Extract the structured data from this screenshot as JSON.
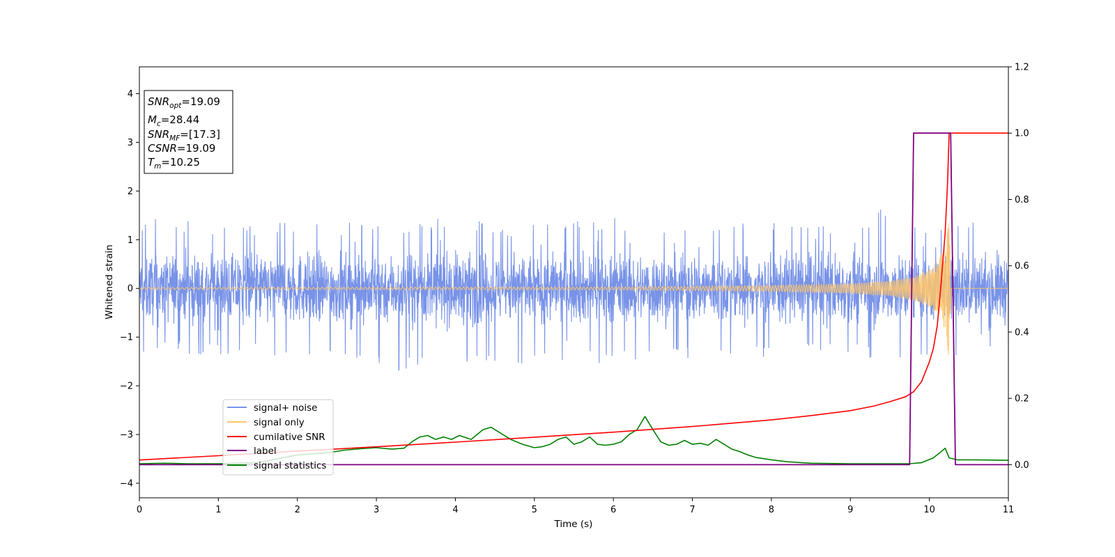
{
  "chart_data": {
    "type": "line",
    "xlabel": "Time (s)",
    "ylabel": "Whitened strain",
    "xlim": [
      0,
      11
    ],
    "ylim_left": [
      -4.3,
      4.55
    ],
    "ylim_right": [
      -0.1,
      1.2
    ],
    "x_ticks": [
      "0",
      "1",
      "2",
      "3",
      "4",
      "5",
      "6",
      "7",
      "8",
      "9",
      "10",
      "11"
    ],
    "y_ticks_left": [
      "−4",
      "−3",
      "−2",
      "−1",
      "0",
      "1",
      "2",
      "3",
      "4"
    ],
    "y_ticks_right": [
      "0.0",
      "0.2",
      "0.4",
      "0.6",
      "0.8",
      "1.0",
      "1.2"
    ],
    "grid": false,
    "legend_position": "lower-left",
    "annotation": {
      "snr_opt": {
        "main": "SNR",
        "sub": "opt",
        "value": "=19.09"
      },
      "mc": {
        "main": "M",
        "sub": "c",
        "value": "=28.44"
      },
      "snr_mf": {
        "main": "SNR",
        "sub": "MF",
        "value": "=[17.3]"
      },
      "csnr": {
        "main": "CSNR",
        "value": "=19.09"
      },
      "tm": {
        "main": "T",
        "sub": "m",
        "value": "=10.25"
      }
    },
    "series": [
      {
        "name": "signal+ noise",
        "axis": "left",
        "color": "#7893e8",
        "envelope": {
          "x": [
            0,
            1,
            2,
            3,
            4,
            4.5,
            5,
            6,
            7,
            8,
            9,
            9.6,
            9.9,
            10.1,
            10.25,
            10.4,
            11
          ],
          "upper": [
            1.45,
            1.35,
            1.35,
            1.35,
            1.5,
            1.3,
            1.4,
            1.45,
            1.4,
            1.35,
            1.4,
            1.75,
            1.4,
            1.45,
            1.3,
            1.4,
            1.4
          ],
          "lower": [
            -1.4,
            -1.35,
            -1.4,
            -1.7,
            -1.65,
            -1.7,
            -1.6,
            -1.55,
            -1.5,
            -1.45,
            -1.4,
            -1.5,
            -1.45,
            -1.4,
            -1.55,
            -1.45,
            -1.25
          ]
        }
      },
      {
        "name": "signal only",
        "axis": "left",
        "color": "#ffc66b",
        "envelope": {
          "x": [
            0,
            6,
            8,
            9,
            9.5,
            9.8,
            10,
            10.1,
            10.2,
            10.25,
            10.28
          ],
          "amplitude": [
            0.02,
            0.03,
            0.06,
            0.1,
            0.16,
            0.25,
            0.4,
            0.55,
            0.85,
            1.45,
            0.0
          ]
        }
      },
      {
        "name": "cumilative SNR",
        "axis": "right",
        "color": "#ff0000",
        "x": [
          0,
          1,
          2,
          3,
          4,
          5,
          6,
          7,
          8,
          8.5,
          9,
          9.3,
          9.5,
          9.7,
          9.8,
          9.9,
          10.0,
          10.05,
          10.1,
          10.15,
          10.2,
          10.23,
          10.25,
          11
        ],
        "y": [
          0.014,
          0.027,
          0.041,
          0.054,
          0.068,
          0.083,
          0.098,
          0.115,
          0.135,
          0.148,
          0.163,
          0.177,
          0.19,
          0.205,
          0.22,
          0.25,
          0.31,
          0.35,
          0.42,
          0.55,
          0.7,
          0.85,
          1.0,
          1.0
        ]
      },
      {
        "name": "label",
        "axis": "right",
        "color": "#800080",
        "x": [
          0,
          9.75,
          9.8,
          10.27,
          10.33,
          11
        ],
        "y": [
          0.0,
          0.0,
          1.0,
          1.0,
          0.0,
          0.0
        ]
      },
      {
        "name": "signal statistics",
        "axis": "left",
        "color": "#008000",
        "x": [
          0,
          0.3,
          0.6,
          1.0,
          1.5,
          2.0,
          2.4,
          2.6,
          2.8,
          3.0,
          3.2,
          3.35,
          3.45,
          3.55,
          3.65,
          3.75,
          3.85,
          3.95,
          4.05,
          4.2,
          4.35,
          4.45,
          4.55,
          4.7,
          4.85,
          5.0,
          5.1,
          5.2,
          5.3,
          5.4,
          5.5,
          5.6,
          5.7,
          5.8,
          5.9,
          6.0,
          6.1,
          6.2,
          6.3,
          6.4,
          6.5,
          6.6,
          6.7,
          6.8,
          6.9,
          7.0,
          7.1,
          7.2,
          7.3,
          7.4,
          7.5,
          7.6,
          7.7,
          7.8,
          8.0,
          8.2,
          8.5,
          9.0,
          9.5,
          9.75,
          9.9,
          10.05,
          10.15,
          10.2,
          10.25,
          10.35,
          10.5,
          11
        ],
        "y": [
          -3.6,
          -3.59,
          -3.6,
          -3.6,
          -3.58,
          -3.42,
          -3.37,
          -3.32,
          -3.29,
          -3.27,
          -3.3,
          -3.28,
          -3.15,
          -3.05,
          -3.02,
          -3.1,
          -3.05,
          -3.1,
          -3.02,
          -3.1,
          -2.9,
          -2.85,
          -2.95,
          -3.1,
          -3.2,
          -3.27,
          -3.25,
          -3.2,
          -3.1,
          -3.05,
          -3.2,
          -3.15,
          -3.05,
          -3.2,
          -3.22,
          -3.2,
          -3.15,
          -3.0,
          -2.9,
          -2.63,
          -2.9,
          -3.15,
          -3.22,
          -3.2,
          -3.12,
          -3.2,
          -3.18,
          -3.22,
          -3.1,
          -3.2,
          -3.3,
          -3.35,
          -3.42,
          -3.47,
          -3.52,
          -3.56,
          -3.59,
          -3.6,
          -3.6,
          -3.6,
          -3.58,
          -3.48,
          -3.35,
          -3.28,
          -3.48,
          -3.52,
          -3.52,
          -3.53
        ]
      }
    ]
  }
}
